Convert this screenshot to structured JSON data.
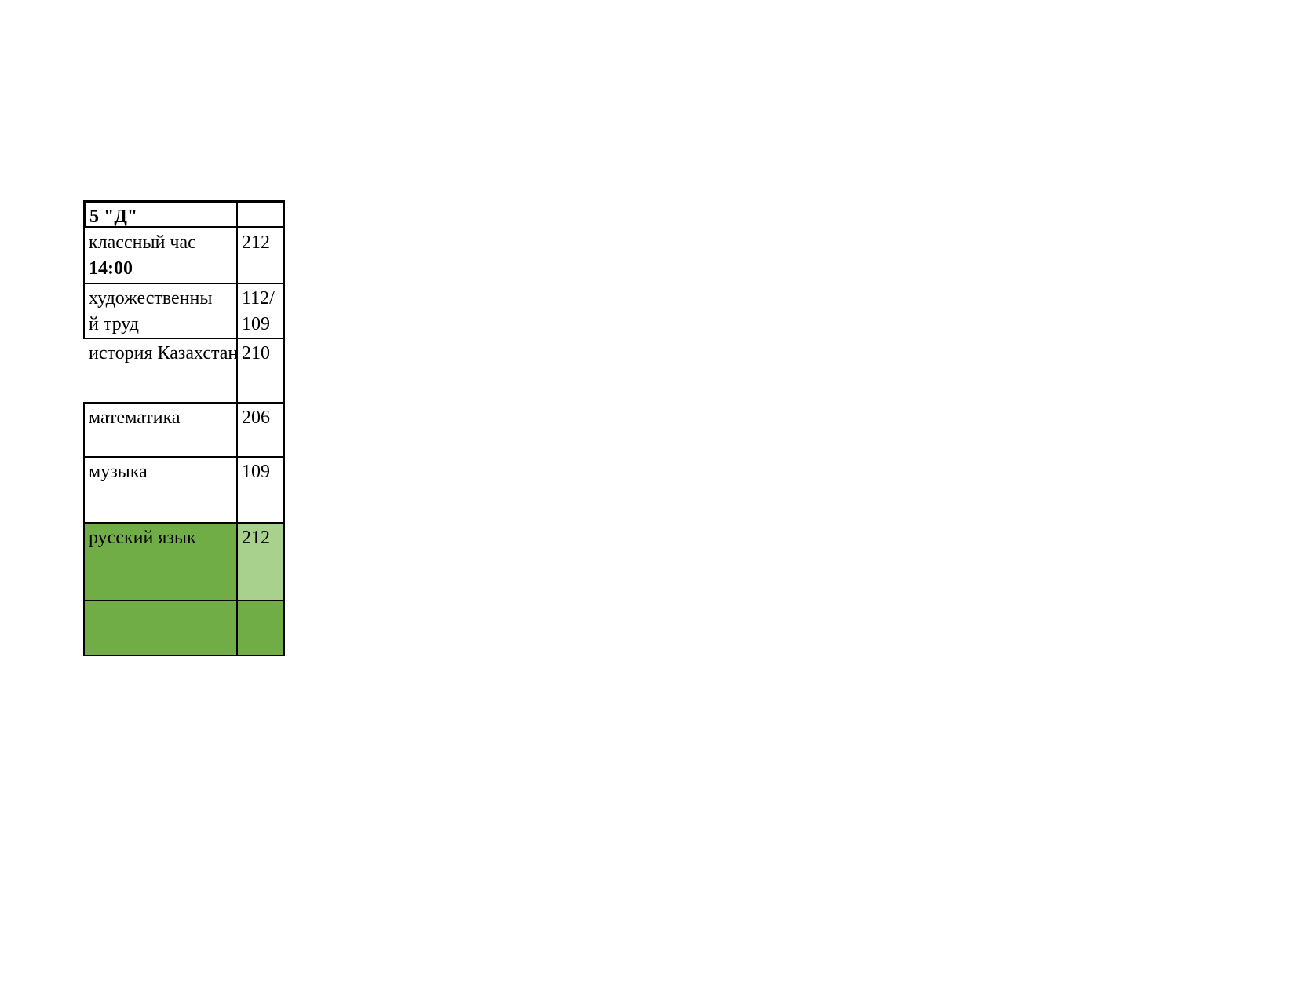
{
  "table": {
    "header": {
      "class_name": "5 \"Д\"",
      "room": ""
    },
    "rows": [
      {
        "subject": "классный час",
        "time": "14:00",
        "room": "212"
      },
      {
        "subject": "художественны",
        "subject_line2": "й труд",
        "room": "112/",
        "room_line2": "109"
      },
      {
        "subject": "история Казахстана",
        "room": "210"
      },
      {
        "subject": "математика",
        "room": "206"
      },
      {
        "subject": "музыка",
        "room": "109"
      },
      {
        "subject": "русский язык",
        "room": "212"
      },
      {
        "subject": "",
        "room": ""
      }
    ]
  },
  "colors": {
    "green_dark": "#70ad47",
    "green_light": "#a9d18e"
  }
}
